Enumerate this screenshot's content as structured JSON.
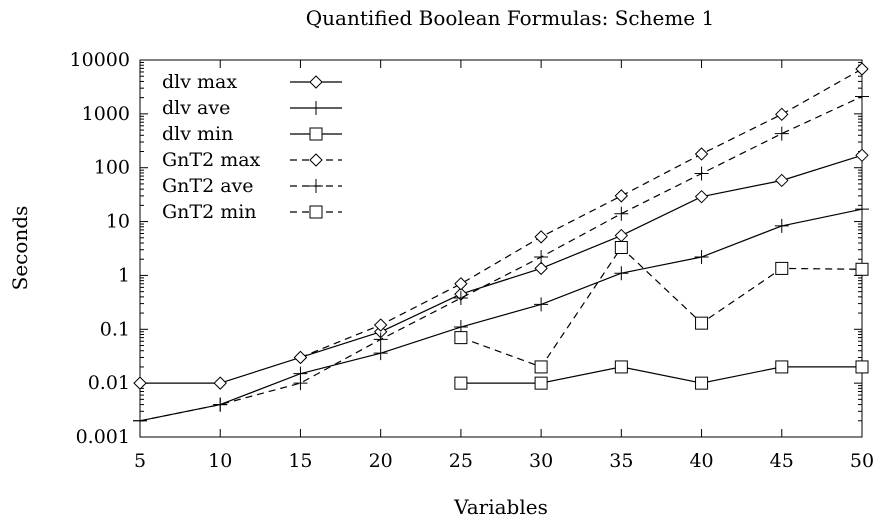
{
  "chart_data": {
    "type": "line",
    "title": "Quantified Boolean Formulas: Scheme 1",
    "xlabel": "Variables",
    "ylabel": "Seconds",
    "x": [
      5,
      10,
      15,
      20,
      25,
      30,
      35,
      40,
      45,
      50
    ],
    "xlim": [
      5,
      50
    ],
    "ylim": [
      0.001,
      10000
    ],
    "yscale": "log",
    "x_ticks": [
      "5",
      "10",
      "15",
      "20",
      "25",
      "30",
      "35",
      "40",
      "45",
      "50"
    ],
    "y_ticks": [
      {
        "value": 0.001,
        "label": "0.001"
      },
      {
        "value": 0.01,
        "label": "0.01"
      },
      {
        "value": 0.1,
        "label": "0.1"
      },
      {
        "value": 1,
        "label": "1"
      },
      {
        "value": 10,
        "label": "10"
      },
      {
        "value": 100,
        "label": "100"
      },
      {
        "value": 1000,
        "label": "1000"
      },
      {
        "value": 10000,
        "label": "10000"
      }
    ],
    "grid": false,
    "legend": "top-left",
    "series": [
      {
        "name": "dlv max",
        "line": "solid",
        "marker": "diamond",
        "values": [
          0.01,
          0.01,
          0.03,
          0.09,
          0.45,
          1.35,
          5.5,
          29,
          58,
          170
        ]
      },
      {
        "name": "dlv ave",
        "line": "solid",
        "marker": "plus",
        "values": [
          0.002,
          0.004,
          0.015,
          0.036,
          0.11,
          0.29,
          1.1,
          2.2,
          8.3,
          17
        ]
      },
      {
        "name": "dlv min",
        "line": "solid",
        "marker": "square",
        "values": [
          null,
          null,
          null,
          null,
          0.01,
          0.01,
          0.02,
          0.01,
          0.02,
          0.02
        ]
      },
      {
        "name": "GnT2 max",
        "line": "dashed",
        "marker": "diamond",
        "values": [
          null,
          null,
          0.03,
          0.12,
          0.7,
          5.2,
          30,
          180,
          980,
          6800
        ]
      },
      {
        "name": "GnT2 ave",
        "line": "dashed",
        "marker": "plus",
        "values": [
          0.002,
          0.004,
          0.01,
          0.065,
          0.38,
          2.2,
          14,
          78,
          430,
          2100
        ]
      },
      {
        "name": "GnT2 min",
        "line": "dashed",
        "marker": "square",
        "values": [
          null,
          null,
          null,
          null,
          0.07,
          0.02,
          3.3,
          0.13,
          1.35,
          1.3
        ]
      }
    ]
  }
}
